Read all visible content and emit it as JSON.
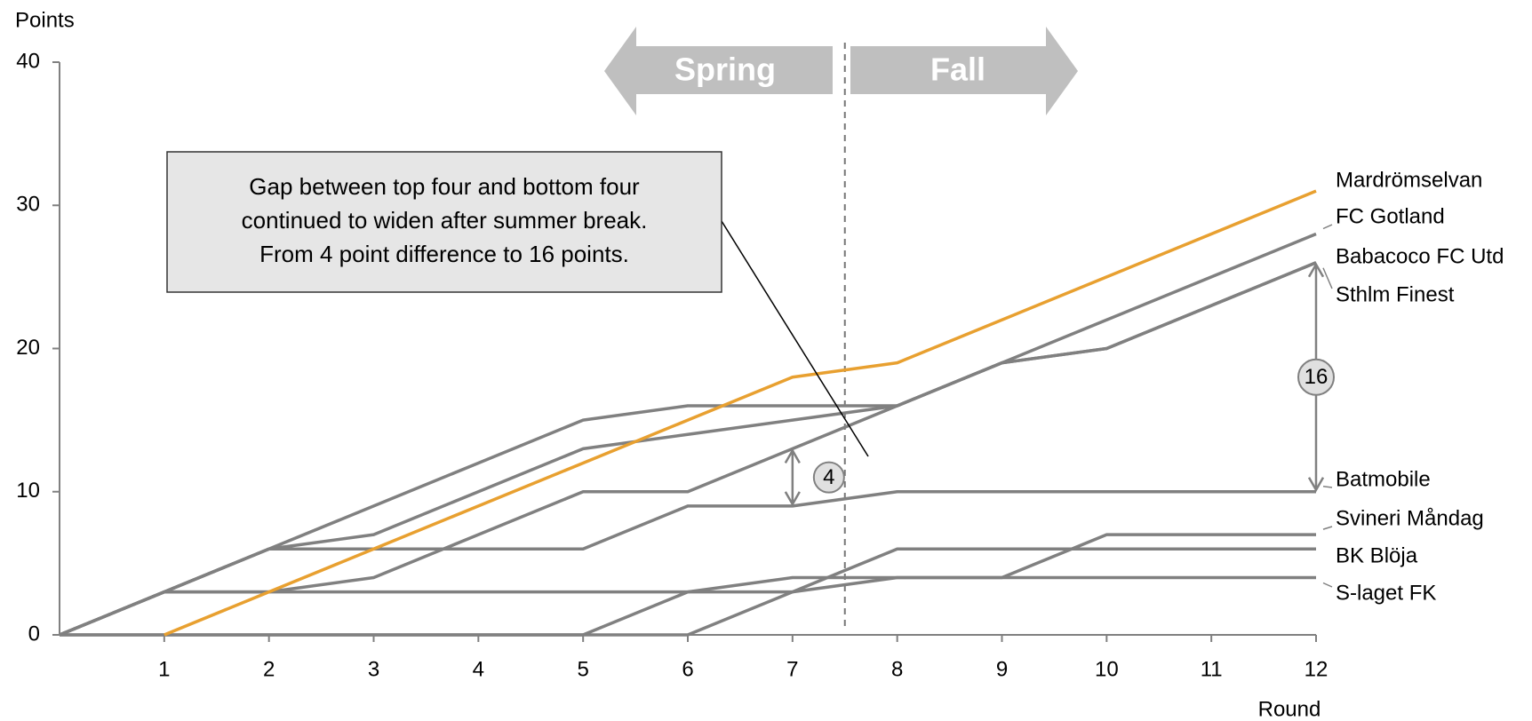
{
  "chart_data": {
    "type": "line",
    "y_label": "Points",
    "x_label": "Round",
    "x": [
      0,
      1,
      2,
      3,
      4,
      5,
      6,
      7,
      8,
      9,
      10,
      11,
      12
    ],
    "xlim": [
      0,
      12
    ],
    "xticks": [
      1,
      2,
      3,
      4,
      5,
      6,
      7,
      8,
      9,
      10,
      11,
      12
    ],
    "ylim": [
      0,
      40
    ],
    "yticks": [
      0,
      10,
      20,
      30,
      40
    ],
    "grid": false,
    "series": [
      {
        "name": "Mardrömselvan",
        "color": "#e8a030",
        "values": [
          null,
          0,
          3,
          6,
          9,
          12,
          15,
          18,
          19,
          22,
          25,
          28,
          31
        ]
      },
      {
        "name": "FC Gotland",
        "color": "#808080",
        "values": [
          0,
          3,
          6,
          9,
          12,
          15,
          16,
          16,
          16,
          19,
          22,
          25,
          28
        ]
      },
      {
        "name": "Babacoco FC Utd",
        "color": "#808080",
        "values": [
          0,
          3,
          6,
          7,
          10,
          13,
          14,
          15,
          16,
          19,
          20,
          23,
          26
        ]
      },
      {
        "name": "Sthlm Finest",
        "color": "#808080",
        "values": [
          0,
          3,
          3,
          4,
          7,
          10,
          10,
          13,
          16,
          19,
          20,
          23,
          26
        ]
      },
      {
        "name": "Batmobile",
        "color": "#808080",
        "values": [
          0,
          3,
          6,
          6,
          6,
          6,
          9,
          9,
          10,
          10,
          10,
          10,
          10
        ]
      },
      {
        "name": "Svineri Måndag",
        "color": "#808080",
        "values": [
          0,
          0,
          0,
          0,
          0,
          0,
          3,
          4,
          4,
          4,
          7,
          7,
          7
        ]
      },
      {
        "name": "BK Blöja",
        "color": "#808080",
        "values": [
          0,
          0,
          0,
          0,
          0,
          0,
          0,
          3,
          6,
          6,
          6,
          6,
          6
        ]
      },
      {
        "name": "S-laget FK",
        "color": "#808080",
        "values": [
          0,
          3,
          3,
          3,
          3,
          3,
          3,
          3,
          4,
          4,
          4,
          4,
          4
        ]
      }
    ],
    "annotations": {
      "spring": "Spring",
      "fall": "Fall",
      "callout": [
        "Gap between top four and bottom four",
        "continued to widen after summer break.",
        "From 4 point difference to 16 points."
      ],
      "gap_before": 4,
      "gap_after": 16
    }
  }
}
